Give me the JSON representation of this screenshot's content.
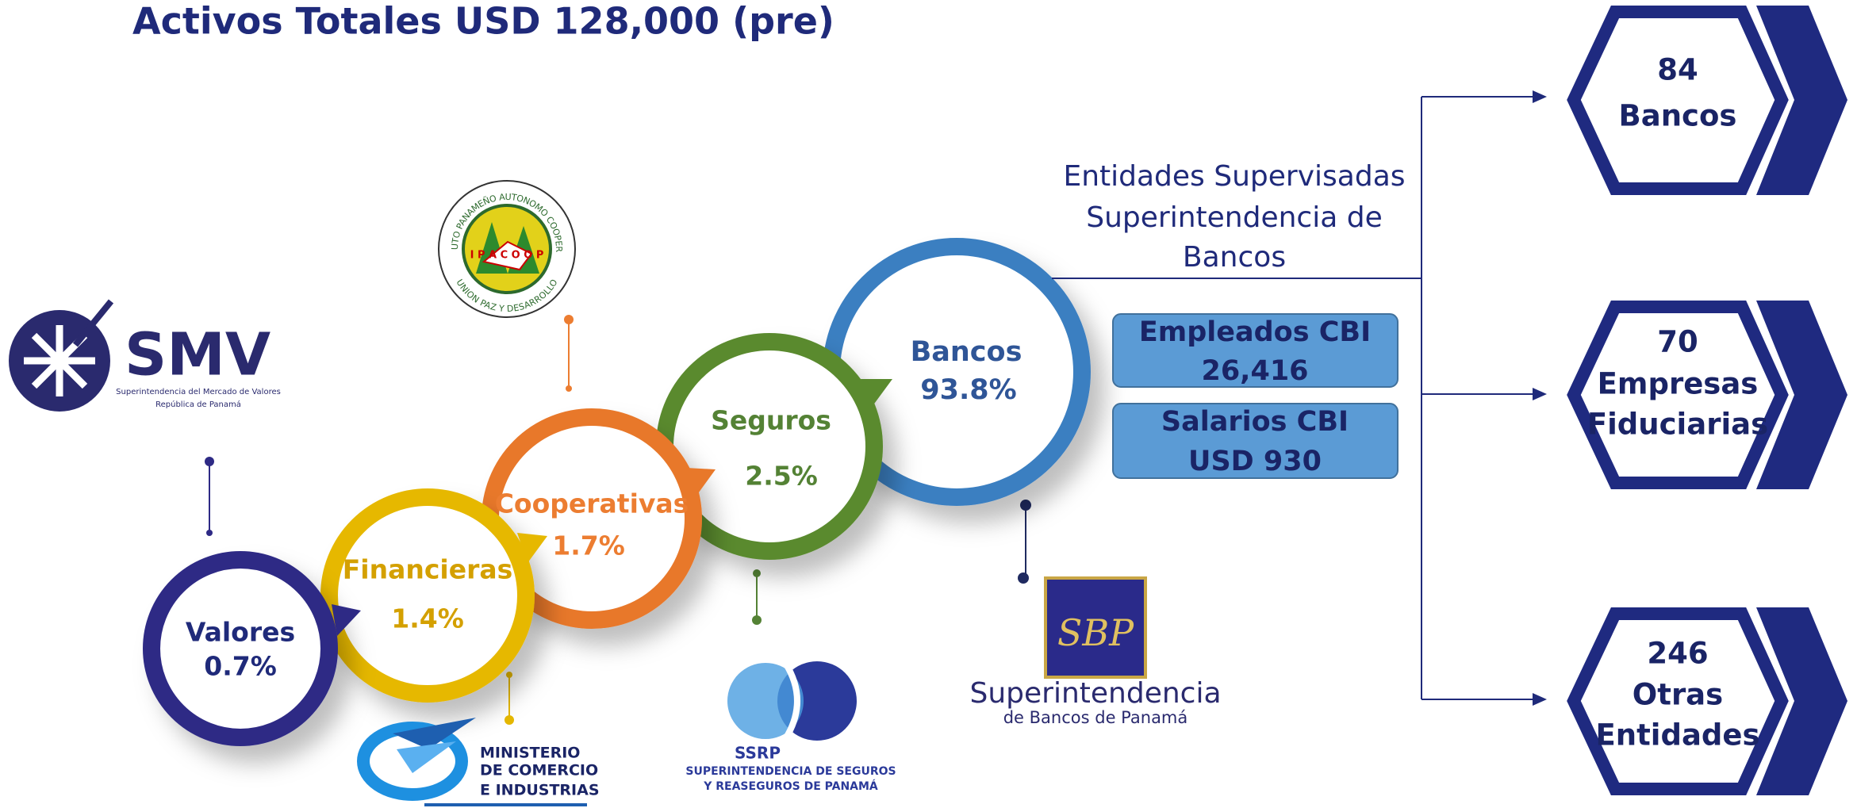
{
  "title": "Activos Totales USD 128,000 (pre)",
  "circles": [
    {
      "label": "Valores",
      "value": "0.7%"
    },
    {
      "label": "Financieras",
      "value": "1.4%"
    },
    {
      "label": "Cooperativas",
      "value": "1.7%"
    },
    {
      "label": "Seguros",
      "value": "2.5%"
    },
    {
      "label": "Bancos",
      "value": "93.8%"
    }
  ],
  "entidades": [
    "Entidades Supervisadas",
    "Superintendencia de",
    "Bancos"
  ],
  "info_boxes": [
    {
      "label": "Empleados CBI",
      "value": "26,416"
    },
    {
      "label": "Salarios CBI",
      "value": "USD 930"
    }
  ],
  "hexagons": [
    [
      "84",
      "Bancos"
    ],
    [
      "70",
      "Empresas",
      "Fiduciarias"
    ],
    [
      "246",
      "Otras",
      "Entidades"
    ]
  ],
  "logos": {
    "smv": {
      "name": "SMV",
      "line1": "Superintendencia del Mercado de Valores",
      "line2": "República de Panamá"
    },
    "ipacoop": {
      "ring_top": "INSTITUTO PANAMEÑO AUTONOMO COOPERATIVO",
      "ring_bottom": "UNION PAZ Y DESARROLLO",
      "center": "I P A C O O P"
    },
    "mici": [
      "MINISTERIO",
      "DE COMERCIO",
      "E INDUSTRIAS"
    ],
    "ssrp": {
      "name": "SSRP",
      "line1": "SUPERINTENDENCIA DE SEGUROS",
      "line2": "Y REASEGUROS DE PANAMÁ"
    },
    "sbp": {
      "name": "SBP",
      "line1": "Superintendencia",
      "line2": "de Bancos de Panamá"
    }
  }
}
